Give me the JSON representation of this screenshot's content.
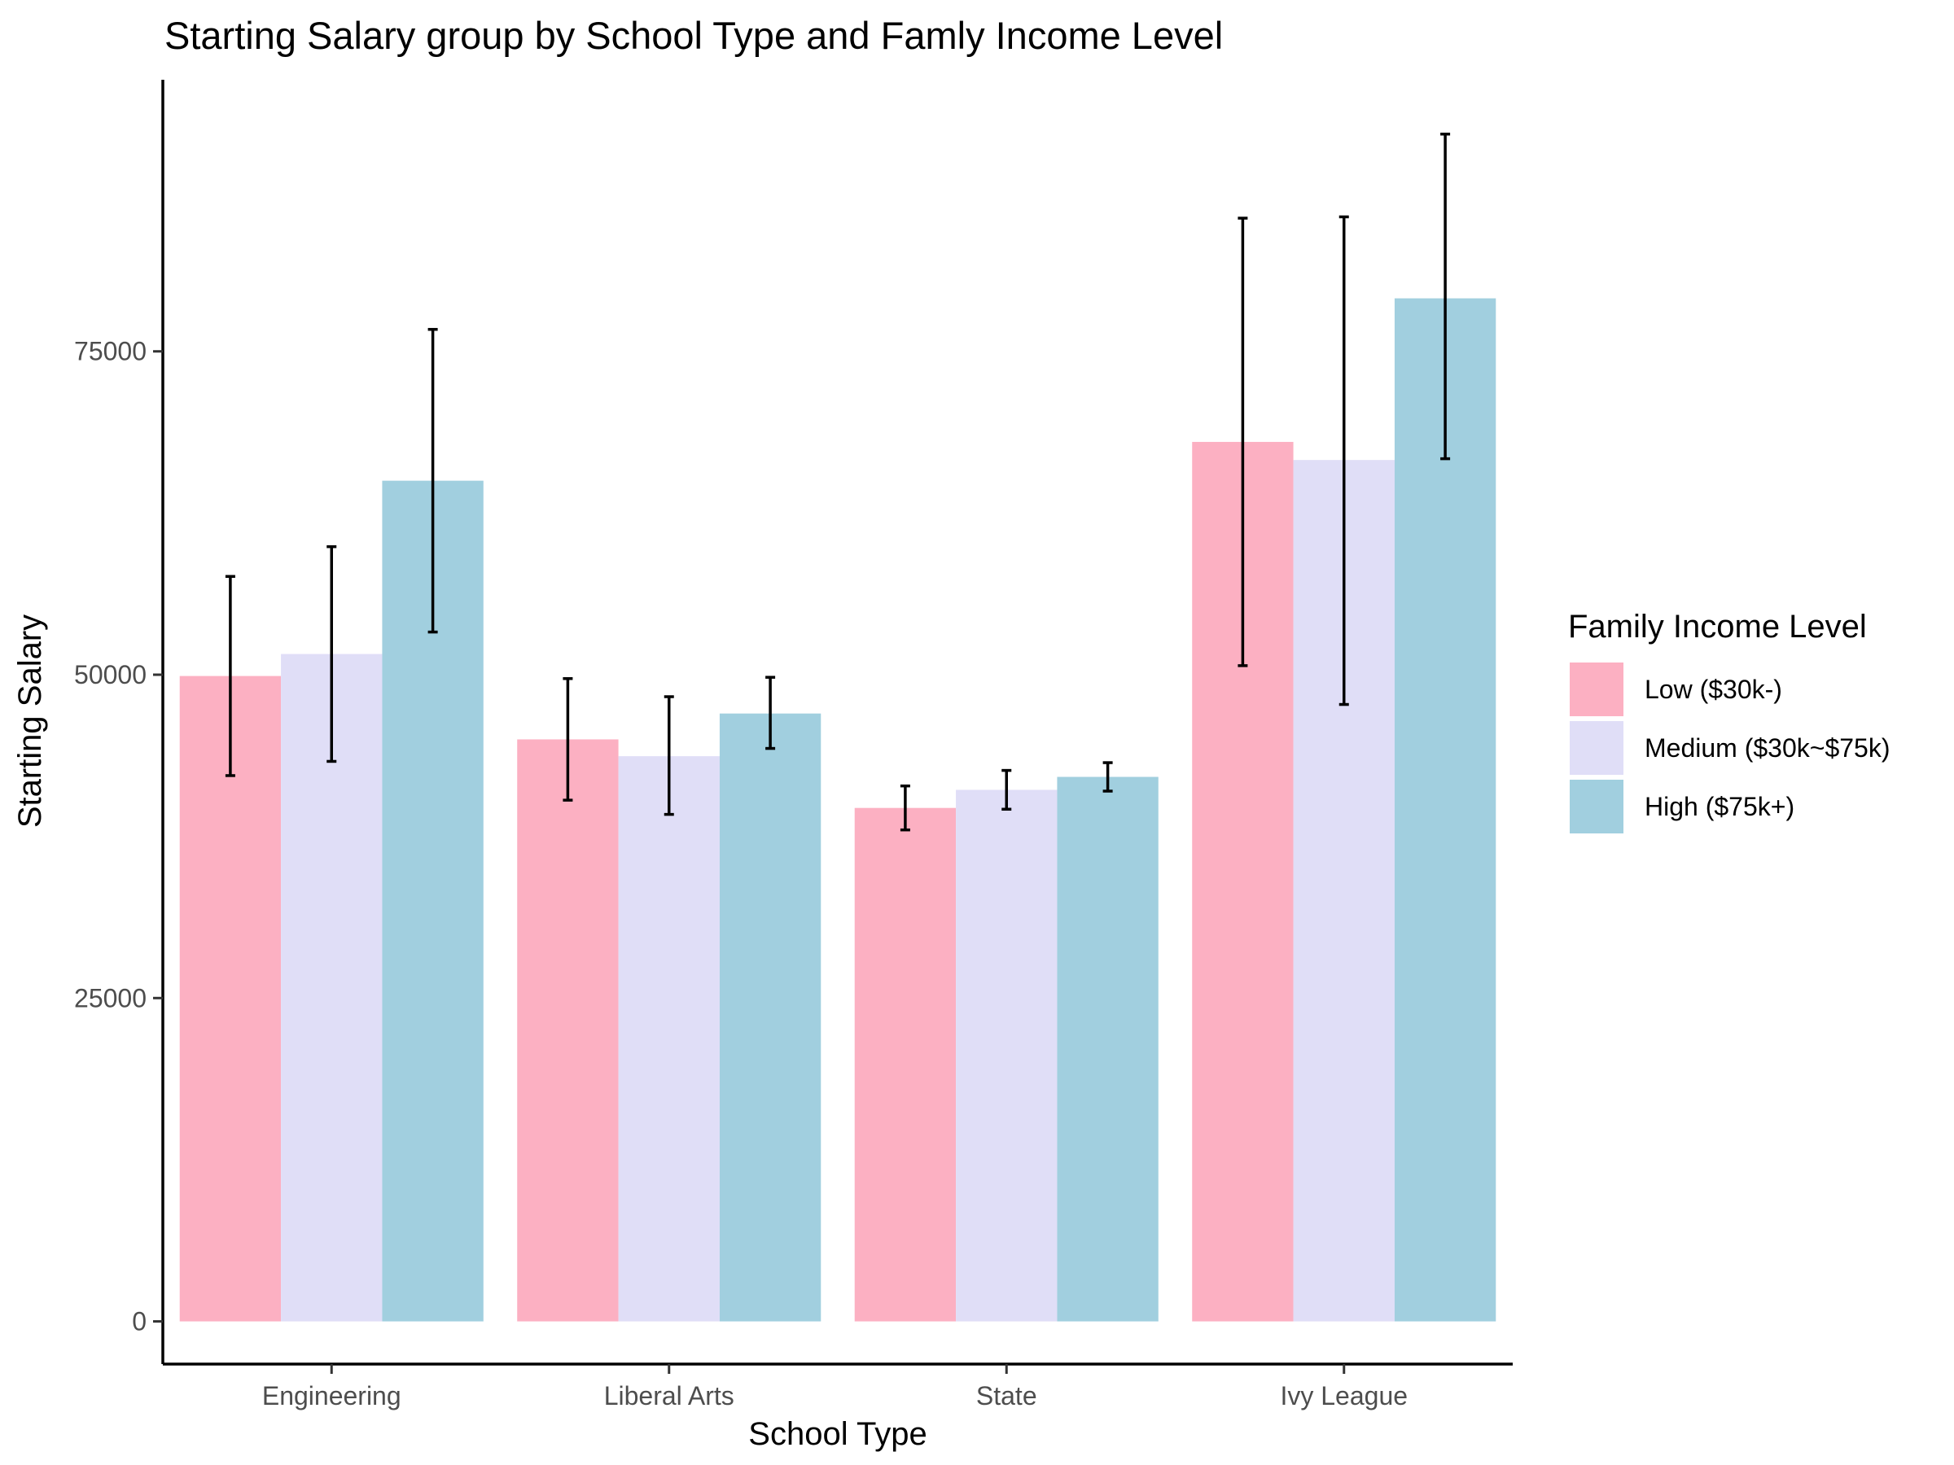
{
  "chart_data": {
    "type": "bar",
    "title": "Starting Salary group by School Type and Famly Income Level",
    "xlabel": "School Type",
    "ylabel": "Starting Salary",
    "categories": [
      "Engineering",
      "Liberal Arts",
      "State",
      "Ivy League"
    ],
    "ylim": [
      -3300,
      96000
    ],
    "yticks": [
      0,
      25000,
      50000,
      75000
    ],
    "grid": false,
    "legend": {
      "title": "Family Income Level",
      "position": "right"
    },
    "series": [
      {
        "name": "Low ($30k-)",
        "color": "#FCB0C2",
        "values": [
          49900,
          45000,
          39700,
          68000
        ],
        "error_low": [
          42200,
          40300,
          38000,
          50700
        ],
        "error_high": [
          57600,
          49700,
          41400,
          85300
        ]
      },
      {
        "name": "Medium ($30k~$75k)",
        "color": "#E0DEF7",
        "values": [
          51600,
          43700,
          41100,
          66600
        ],
        "error_low": [
          43300,
          39200,
          39600,
          47700
        ],
        "error_high": [
          59900,
          48300,
          42600,
          85400
        ]
      },
      {
        "name": "High ($75k+)",
        "color": "#A1CFDF",
        "values": [
          65000,
          47000,
          42100,
          79100
        ],
        "error_low": [
          53300,
          44300,
          41000,
          66700
        ],
        "error_high": [
          76700,
          49800,
          43200,
          91800
        ]
      }
    ]
  }
}
